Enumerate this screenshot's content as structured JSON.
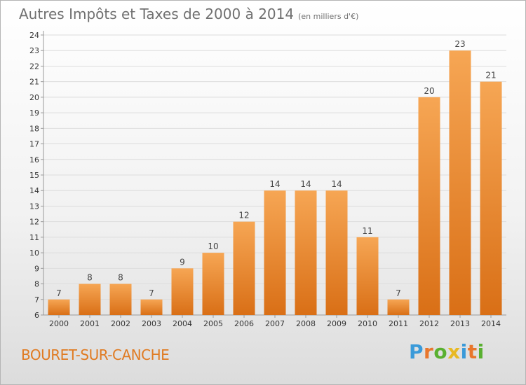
{
  "title": "Autres Impôts et Taxes de 2000 à 2014",
  "subtitle": "(en milliers d'€)",
  "commune": "BOURET-SUR-CANCHE",
  "logo": {
    "text": "Proxiti",
    "letters": [
      {
        "ch": "P",
        "color": "#3a9ad9"
      },
      {
        "ch": "r",
        "color": "#e8762c"
      },
      {
        "ch": "o",
        "color": "#59b030"
      },
      {
        "ch": "x",
        "color": "#e8b922"
      },
      {
        "ch": "i",
        "color": "#3a9ad9"
      },
      {
        "ch": "t",
        "color": "#e8762c"
      },
      {
        "ch": "i",
        "color": "#59b030"
      }
    ]
  },
  "colors": {
    "bar_light": "#f6a654",
    "bar_dark": "#d96f16",
    "grid": "#dcdcdc",
    "axis": "#999999"
  },
  "chart_data": {
    "type": "bar",
    "categories": [
      "2000",
      "2001",
      "2002",
      "2003",
      "2004",
      "2005",
      "2006",
      "2007",
      "2008",
      "2009",
      "2010",
      "2011",
      "2012",
      "2013",
      "2014"
    ],
    "values": [
      7,
      8,
      8,
      7,
      9,
      10,
      12,
      14,
      14,
      14,
      11,
      7,
      20,
      23,
      21
    ],
    "y_ticks": [
      "6",
      "7",
      "8",
      "9",
      "10",
      "11",
      "12",
      "13",
      "14",
      "15",
      "16",
      "17",
      "18",
      "19",
      "20",
      "21",
      "22",
      "23",
      "24"
    ],
    "ylim": [
      6,
      24
    ],
    "grid": true,
    "legend": "none"
  }
}
